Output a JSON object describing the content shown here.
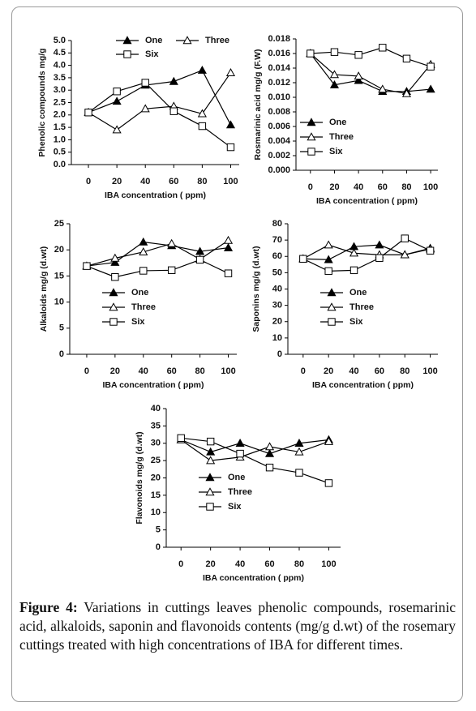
{
  "chart_data": [
    {
      "type": "line",
      "y_label": "Phenolic compounds mg/g",
      "x_label": "IBA concentration ( ppm)",
      "x": [
        0,
        20,
        40,
        60,
        80,
        100
      ],
      "xlim": [
        -12,
        106
      ],
      "xticks": [
        0,
        20,
        40,
        60,
        80,
        100
      ],
      "ylim": [
        0,
        5
      ],
      "yticks": [
        {
          "value": 0,
          "label": "0.0"
        },
        0.5,
        {
          "value": 1,
          "label": "1.0"
        },
        1.5,
        {
          "value": 2,
          "label": "2.0"
        },
        2.5,
        {
          "value": 3,
          "label": "3.0"
        },
        3.5,
        {
          "value": 4,
          "label": "4.0"
        },
        4.5,
        {
          "value": 5,
          "label": "5.0"
        }
      ],
      "legend": "upper center",
      "series": [
        {
          "name": "One",
          "color": "#000000",
          "marker": "filled-triangle",
          "values": [
            2.1,
            2.55,
            3.2,
            3.35,
            3.8,
            1.6
          ]
        },
        {
          "name": "Three",
          "color": "#000000",
          "marker": "open-triangle",
          "values": [
            2.1,
            1.4,
            2.25,
            2.35,
            2.05,
            3.7
          ]
        },
        {
          "name": "Six",
          "color": "#000000",
          "marker": "open-square",
          "values": [
            2.1,
            2.95,
            3.3,
            2.15,
            1.55,
            0.7
          ]
        }
      ]
    },
    {
      "type": "line",
      "y_label": "Rosmarinic acid mg/g (F.W)",
      "x_label": "IBA concentration ( ppm)",
      "x": [
        0,
        20,
        40,
        60,
        80,
        100
      ],
      "xlim": [
        -12,
        106
      ],
      "xticks": [
        0,
        20,
        40,
        60,
        80,
        100
      ],
      "ylim": [
        0,
        0.018
      ],
      "yticks": [
        {
          "value": 0,
          "label": "0.000"
        },
        0.002,
        0.004,
        0.006,
        0.008,
        {
          "value": 0.01,
          "label": "0.010"
        },
        0.012,
        0.014,
        0.016,
        0.018
      ],
      "legend": "center right",
      "series": [
        {
          "name": "One",
          "color": "#000000",
          "marker": "filled-triangle",
          "values": [
            0.016,
            0.0117,
            0.0123,
            0.0108,
            0.0108,
            0.0111
          ]
        },
        {
          "name": "Three",
          "color": "#000000",
          "marker": "open-triangle",
          "values": [
            0.016,
            0.0131,
            0.0129,
            0.0111,
            0.0105,
            0.0145
          ]
        },
        {
          "name": "Six",
          "color": "#000000",
          "marker": "open-square",
          "values": [
            0.016,
            0.0162,
            0.0158,
            0.0168,
            0.0153,
            0.0142
          ]
        }
      ]
    },
    {
      "type": "line",
      "y_label": "Alkaloids mg/g (d.wt)",
      "x_label": "IBA concentration ( ppm)",
      "x": [
        0,
        20,
        40,
        60,
        80,
        100
      ],
      "xlim": [
        -12,
        106
      ],
      "xticks": [
        0,
        20,
        40,
        60,
        80,
        100
      ],
      "ylim": [
        0,
        25
      ],
      "yticks": [
        0,
        5,
        10,
        15,
        20,
        25
      ],
      "legend": "lower center",
      "series": [
        {
          "name": "One",
          "color": "#000000",
          "marker": "filled-triangle",
          "values": [
            16.9,
            17.6,
            21.5,
            20.8,
            19.7,
            20.4
          ]
        },
        {
          "name": "Three",
          "color": "#000000",
          "marker": "open-triangle",
          "values": [
            16.9,
            18.4,
            19.6,
            21.2,
            18.2,
            21.8
          ]
        },
        {
          "name": "Six",
          "color": "#000000",
          "marker": "open-square",
          "values": [
            16.9,
            14.8,
            16.0,
            16.1,
            18.1,
            15.5
          ]
        }
      ]
    },
    {
      "type": "line",
      "y_label": "Saponins mg/g (d.wt)",
      "x_label": "IBA concentration ( ppm)",
      "x": [
        0,
        20,
        40,
        60,
        80,
        100
      ],
      "xlim": [
        -12,
        106
      ],
      "xticks": [
        0,
        20,
        40,
        60,
        80,
        100
      ],
      "ylim": [
        0,
        80
      ],
      "yticks": [
        0,
        10,
        20,
        30,
        40,
        50,
        60,
        70,
        80
      ],
      "legend": "lower center",
      "series": [
        {
          "name": "One",
          "color": "#000000",
          "marker": "filled-triangle",
          "values": [
            58.5,
            58,
            66,
            67,
            61,
            65
          ]
        },
        {
          "name": "Three",
          "color": "#000000",
          "marker": "open-triangle",
          "values": [
            58.5,
            67,
            62,
            61,
            61,
            64.5
          ]
        },
        {
          "name": "Six",
          "color": "#000000",
          "marker": "open-square",
          "values": [
            58.5,
            51,
            51.5,
            59,
            71,
            63.5
          ]
        }
      ]
    },
    {
      "type": "line",
      "y_label": "Flavonoids mg/g (d.wt)",
      "x_label": "IBA concentration ( ppm)",
      "x": [
        0,
        20,
        40,
        60,
        80,
        100
      ],
      "xlim": [
        -10,
        108
      ],
      "xticks": [
        0,
        20,
        40,
        60,
        80,
        100
      ],
      "ylim": [
        0,
        40
      ],
      "yticks": [
        0,
        5,
        10,
        15,
        20,
        25,
        30,
        35,
        40
      ],
      "legend": "lower center",
      "series": [
        {
          "name": "One",
          "color": "#000000",
          "marker": "filled-triangle",
          "values": [
            31,
            27.5,
            30,
            27,
            30,
            31
          ]
        },
        {
          "name": "Three",
          "color": "#000000",
          "marker": "open-triangle",
          "values": [
            31,
            25,
            26,
            29,
            27.5,
            30.5
          ]
        },
        {
          "name": "Six",
          "color": "#000000",
          "marker": "open-square",
          "values": [
            31.5,
            30.5,
            27,
            23,
            21.5,
            18.5
          ]
        }
      ]
    }
  ],
  "caption": {
    "label": "Figure 4:",
    "text": " Variations in cuttings leaves phenolic compounds, rosemarinic acid, alkaloids, saponin and flavonoids contents (mg/g d.wt) of the rosemary cuttings treated with high concentrations of IBA for different times."
  }
}
